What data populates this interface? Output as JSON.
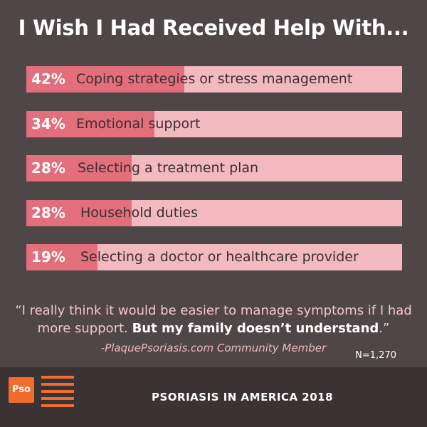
{
  "title": "I Wish I Had Received Help With...",
  "chart_data": {
    "type": "bar",
    "orientation": "horizontal",
    "categories": [
      "Coping strategies or stress management",
      "Emotional support",
      "Selecting a treatment plan",
      "Household duties",
      "Selecting a doctor or healthcare provider"
    ],
    "values": [
      42,
      34,
      28,
      28,
      19
    ],
    "value_labels": [
      "42%",
      "34%",
      "28%",
      "28%",
      "19%"
    ],
    "xlim": [
      0,
      100
    ],
    "colors": {
      "fill": "#e46f7c",
      "track": "#f2b9bf"
    }
  },
  "quote": {
    "text_normal": "“I really think it would be easier to manage symptoms if I had more support. ",
    "text_bold": "But my family doesn’t understand",
    "text_end": ".”",
    "attribution": "-PlaquePsoriasis.com Community Member"
  },
  "sample_size": "N=1,270",
  "footer": {
    "logo_text": "Pso",
    "title": "PSORIASIS IN AMERICA 2018"
  },
  "colors": {
    "background": "#4f4648",
    "footer_background": "#3b3234",
    "brand_orange": "#f26c2d"
  }
}
